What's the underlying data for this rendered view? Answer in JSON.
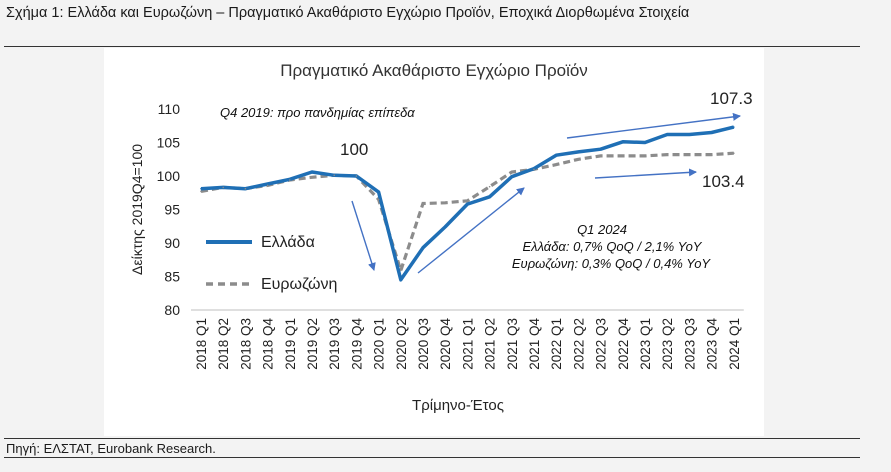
{
  "figure": {
    "title": "Σχήμα 1: Ελλάδα και Ευρωζώνη – Πραγματικό Ακαθάριστο Εγχώριο Προϊόν, Εποχικά Διορθωμένα Στοιχεία",
    "source": "Πηγή: ΕΛΣΤΑΤ, Eurobank Research."
  },
  "chart_data": {
    "type": "line",
    "title": "Πραγματικό Ακαθάριστο Εγχώριο Προϊόν",
    "subtitle": "Q4 2019: προ πανδημίας επίπεδα",
    "xlabel": "Τρίμηνο-Έτος",
    "ylabel": "Δείκτης 2019Q4=100",
    "ylim": [
      80,
      110
    ],
    "yticks": [
      80,
      85,
      90,
      95,
      100,
      105,
      110
    ],
    "grid": false,
    "legend_position": "left",
    "categories": [
      "2018 Q1",
      "2018 Q2",
      "2018 Q3",
      "2018 Q4",
      "2019 Q1",
      "2019 Q2",
      "2019 Q3",
      "2019 Q4",
      "2020 Q1",
      "2020 Q2",
      "2020 Q3",
      "2020 Q4",
      "2021 Q1",
      "2021 Q2",
      "2021 Q3",
      "2021 Q4",
      "2022 Q1",
      "2022 Q2",
      "2022 Q3",
      "2022 Q4",
      "2023 Q1",
      "2023 Q2",
      "2023 Q3",
      "2023 Q4",
      "2024 Q1"
    ],
    "series": [
      {
        "name": "Ελλάδα",
        "color": "#1f6fb5",
        "style": "solid",
        "values": [
          98.1,
          98.3,
          98.1,
          98.8,
          99.5,
          100.6,
          100.1,
          100.0,
          97.6,
          84.5,
          89.3,
          92.4,
          95.8,
          96.9,
          99.9,
          101.1,
          103.1,
          103.6,
          104.0,
          105.1,
          105.0,
          106.2,
          106.2,
          106.5,
          107.3
        ]
      },
      {
        "name": "Ευρωζώνη",
        "color": "#8c8c8c",
        "style": "dashed",
        "values": [
          97.7,
          98.3,
          98.1,
          98.6,
          99.4,
          99.8,
          100.1,
          100.0,
          96.5,
          85.9,
          95.9,
          96.0,
          96.3,
          98.4,
          100.6,
          101.0,
          101.7,
          102.5,
          103.0,
          103.0,
          103.0,
          103.2,
          103.2,
          103.2,
          103.4
        ]
      }
    ],
    "annotations": {
      "pre_pandemic_label": "100",
      "greece_last_label": "107.3",
      "euro_last_label": "103.4",
      "box_title": "Q1 2024",
      "box_line1": "Ελλάδα: 0,7% QoQ / 2,1% YoY",
      "box_line2": "Ευρωζώνη: 0,3% QoQ / 0,4% YoY"
    },
    "arrow_color": "#4472c4"
  }
}
